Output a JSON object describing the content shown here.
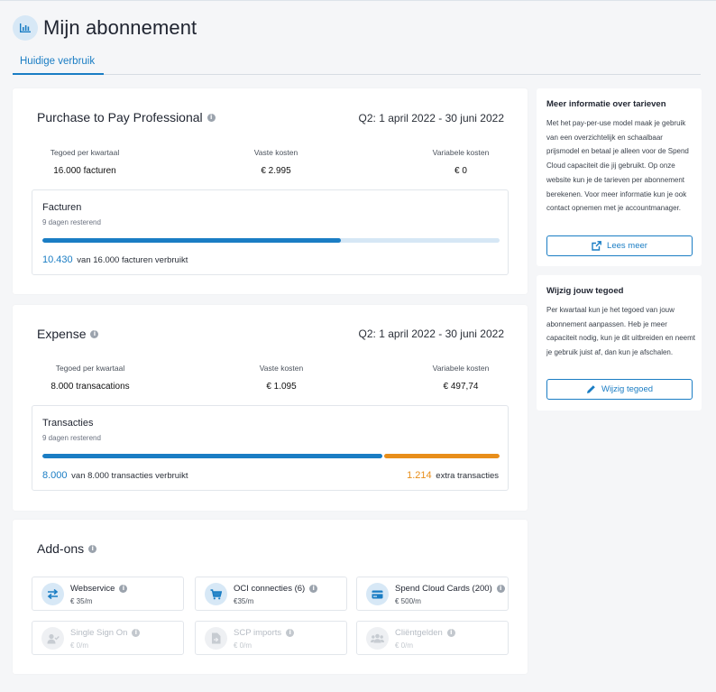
{
  "page": {
    "title": "Mijn abonnement"
  },
  "tabs": [
    {
      "label": "Huidige verbruik"
    }
  ],
  "p2p": {
    "title": "Purchase to Pay Professional",
    "period": "Q2: 1 april 2022 - 30 juni 2022",
    "stats": [
      {
        "label": "Tegoed per kwartaal",
        "value": "16.000 facturen"
      },
      {
        "label": "Vaste kosten",
        "value": "€ 2.995"
      },
      {
        "label": "Variabele kosten",
        "value": "€ 0"
      }
    ],
    "usage": {
      "title": "Facturen",
      "remaining": "9 dagen resterend",
      "used": "10.430",
      "used_text": "van 16.000 facturen verbruikt",
      "progress": 0.652
    }
  },
  "expense": {
    "title": "Expense",
    "period": "Q2: 1 april 2022 - 30 juni 2022",
    "stats": [
      {
        "label": "Tegoed per kwartaal",
        "value": "8.000 transacations"
      },
      {
        "label": "Vaste kosten",
        "value": "€ 1.095"
      },
      {
        "label": "Variabele kosten",
        "value": "€ 497,74"
      }
    ],
    "usage": {
      "title": "Transacties",
      "remaining": "9 dagen resterend",
      "used": "8.000",
      "used_text": "van 8.000 transacties verbruikt",
      "extra": "1.214",
      "extra_text": "extra transacties",
      "progress": 1.0
    }
  },
  "addons": {
    "title": "Add-ons",
    "items": [
      {
        "name": "Webservice",
        "price": "€ 35/m",
        "active": true,
        "icon": "swap-arrows-icon"
      },
      {
        "name": "OCI connecties (6)",
        "price": "€35/m",
        "active": true,
        "icon": "cart-icon"
      },
      {
        "name": "Spend Cloud Cards (200)",
        "price": "€ 500/m",
        "active": true,
        "icon": "credit-card-icon"
      },
      {
        "name": "Single Sign On",
        "price": "€ 0/m",
        "active": false,
        "icon": "user-check-icon"
      },
      {
        "name": "SCP imports",
        "price": "€ 0/m",
        "active": false,
        "icon": "file-import-icon"
      },
      {
        "name": "Cliëntgelden",
        "price": "€ 0/m",
        "active": false,
        "icon": "users-icon"
      }
    ]
  },
  "sidebar": {
    "info": {
      "title": "Meer informatie over tarieven",
      "text": "Met het pay-per-use model maak je gebruik van een overzichtelijk en schaalbaar prijsmodel en betaal je alleen voor de Spend Cloud capaciteit die jij gebruikt. Op onze website kun je de tarieven per abonnement berekenen. Voor meer informatie kun je ook contact opnemen met je accountmanager.",
      "button": "Lees meer"
    },
    "change": {
      "title": "Wijzig jouw tegoed",
      "text": "Per kwartaal kun je het tegoed van jouw abonnement aanpassen. Heb je meer capaciteit nodig, kun je dit uitbreiden en neemt je gebruik juist af, dan kun je afschalen.",
      "button": "Wijzig tegoed"
    }
  },
  "colors": {
    "accent": "#1a7dc4",
    "extra": "#e88e1a",
    "track": "#d6e7f5"
  }
}
